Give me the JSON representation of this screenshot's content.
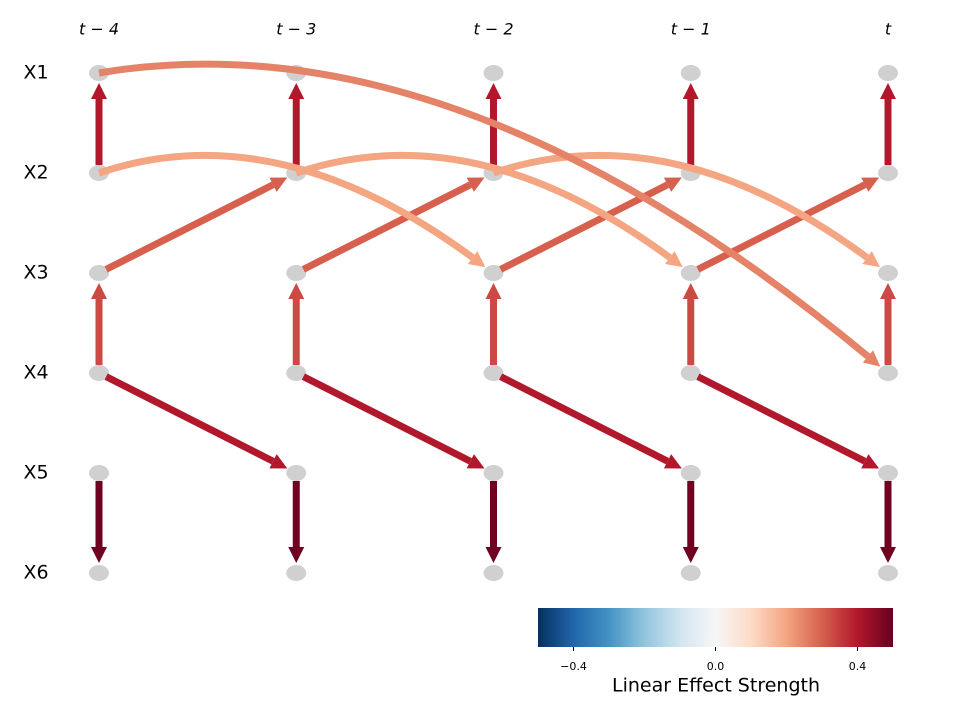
{
  "variables": [
    "X1",
    "X2",
    "X3",
    "X4",
    "X5",
    "X6"
  ],
  "time_labels": [
    "t − 4",
    "t − 3",
    "t − 2",
    "t − 1",
    "t"
  ],
  "links": [
    {
      "source": "X2",
      "target": "X1",
      "lag": 0,
      "value": 0.4
    },
    {
      "source": "X4",
      "target": "X3",
      "lag": 0,
      "value": 0.33
    },
    {
      "source": "X5",
      "target": "X6",
      "lag": 0,
      "value": 0.49
    },
    {
      "source": "X3",
      "target": "X2",
      "lag": 1,
      "value": 0.3
    },
    {
      "source": "X4",
      "target": "X5",
      "lag": 1,
      "value": 0.4
    },
    {
      "source": "X2",
      "target": "X3",
      "lag": 2,
      "value": 0.2
    },
    {
      "source": "X1",
      "target": "X4",
      "lag": 4,
      "value": 0.25
    }
  ],
  "colorbar": {
    "label": "Linear Effect Strength",
    "vlim": [
      -0.5,
      0.5
    ],
    "ticks": [
      {
        "value": -0.4,
        "label": "−0.4"
      },
      {
        "value": 0,
        "label": "0.0"
      },
      {
        "value": 0.4,
        "label": "0.4"
      }
    ]
  }
}
